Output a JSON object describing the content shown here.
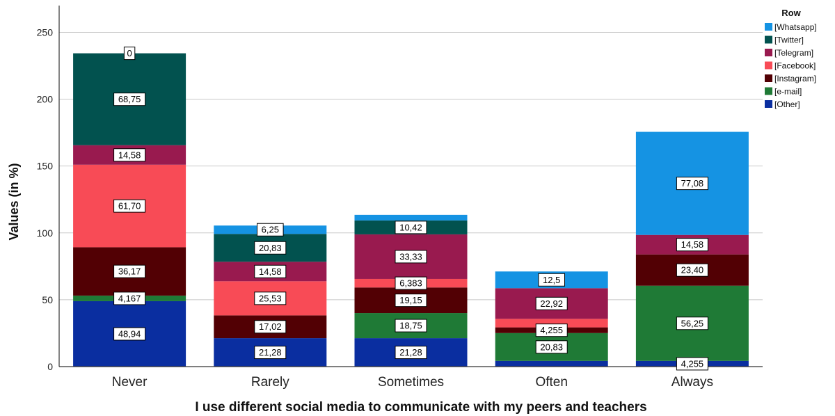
{
  "chart_data": {
    "type": "bar",
    "stacked": true,
    "categories": [
      "Never",
      "Rarely",
      "Sometimes",
      "Often",
      "Always"
    ],
    "xlabel": "I use different social media to communicate with my peers and teachers",
    "ylabel": "Values (in %)",
    "ylim": [
      0,
      270
    ],
    "yticks": [
      0,
      50,
      100,
      150,
      200,
      250
    ],
    "grid": true,
    "legend": {
      "title": "Row",
      "position": "top-right"
    },
    "series": [
      {
        "name": "[Other]",
        "color": "#0a2ea0",
        "values": [
          48.94,
          21.28,
          21.28,
          4.255,
          4.255
        ],
        "labels": [
          "48,94",
          "21,28",
          "21,28",
          null,
          "4,255"
        ]
      },
      {
        "name": "[e-mail]",
        "color": "#1f7a36",
        "values": [
          4.167,
          0,
          18.75,
          20.83,
          56.25
        ],
        "labels": [
          "4,167",
          null,
          "18,75",
          "20,83",
          "56,25"
        ]
      },
      {
        "name": "[Instagram]",
        "color": "#520004",
        "values": [
          36.17,
          17.02,
          19.15,
          4.255,
          23.4
        ],
        "labels": [
          "36,17",
          "17,02",
          "19,15",
          "4,255",
          "23,40"
        ]
      },
      {
        "name": "[Facebook]",
        "color": "#f84b56",
        "values": [
          61.7,
          25.53,
          6.383,
          6.383,
          0
        ],
        "labels": [
          "61,70",
          "25,53",
          "6,383",
          null,
          null
        ]
      },
      {
        "name": "[Telegram]",
        "color": "#991a4f",
        "values": [
          14.58,
          14.58,
          33.33,
          22.92,
          14.58
        ],
        "labels": [
          "14,58",
          "14,58",
          "33,33",
          "22,92",
          "14,58"
        ]
      },
      {
        "name": "[Twitter]",
        "color": "#02524f",
        "values": [
          68.75,
          20.83,
          10.42,
          0,
          0
        ],
        "labels": [
          "68,75",
          "20,83",
          "10,42",
          null,
          null
        ]
      },
      {
        "name": "[Whatsapp]",
        "color": "#1593e3",
        "values": [
          0,
          6.25,
          4.167,
          12.5,
          77.08
        ],
        "labels": [
          "0",
          "6,25",
          null,
          "12,5",
          "77,08"
        ]
      }
    ]
  }
}
